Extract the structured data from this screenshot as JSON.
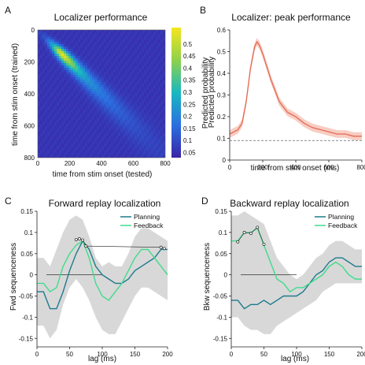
{
  "colors": {
    "heat_low": "#3a24a6",
    "heat_high": "#f5e61e",
    "probability_line": "#e26a55",
    "probability_band": "#f6c1b4",
    "planning": "#1e7a8c",
    "feedback": "#3fdc8c",
    "ci_band": "#d4d4d4",
    "chance_line": "#666666"
  },
  "chart_data": [
    {
      "panel": "A",
      "type": "heatmap",
      "title": "Localizer performance",
      "xlabel": "time from stim onset (tested)",
      "ylabel": "time from stim onset (trained)",
      "colorbar_label": "Predicted probability",
      "xlim": [
        0,
        800
      ],
      "ylim": [
        0,
        800
      ],
      "x_ticks": [
        "0",
        "200",
        "400",
        "600",
        "800"
      ],
      "y_ticks": [
        "0",
        "200",
        "400",
        "600",
        "800"
      ],
      "colorbar_range": [
        0.03,
        0.57
      ],
      "colorbar_ticks": [
        "0.5",
        "0.45",
        "0.4",
        "0.35",
        "0.3",
        "0.25",
        "0.2",
        "0.15",
        "0.1",
        "0.05"
      ],
      "colorbar_tick_values": [
        0.5,
        0.45,
        0.4,
        0.35,
        0.3,
        0.25,
        0.2,
        0.15,
        0.1,
        0.05
      ],
      "diagonal_profile": {
        "t": [
          0,
          50,
          100,
          130,
          160,
          200,
          250,
          300,
          400,
          500,
          600,
          700,
          800
        ],
        "p": [
          0.07,
          0.12,
          0.3,
          0.5,
          0.55,
          0.45,
          0.33,
          0.25,
          0.18,
          0.14,
          0.11,
          0.09,
          0.08
        ]
      },
      "background_level": 0.06
    },
    {
      "panel": "B",
      "type": "line",
      "title": "Localizer: peak performance",
      "xlabel": "time from stim onset (ms)",
      "ylabel": "Predicted probability",
      "xlim": [
        0,
        800
      ],
      "ylim": [
        0,
        0.6
      ],
      "x_ticks": [
        "0",
        "200",
        "400",
        "600",
        "800"
      ],
      "y_ticks": [
        "0",
        "0.1",
        "0.2",
        "0.3",
        "0.4",
        "0.5",
        "0.6"
      ],
      "chance_level": 0.09,
      "series": [
        {
          "x": [
            0,
            25,
            50,
            75,
            100,
            125,
            150,
            165,
            180,
            200,
            225,
            250,
            275,
            300,
            350,
            400,
            450,
            500,
            550,
            600,
            650,
            700,
            750,
            800
          ],
          "values": [
            0.12,
            0.13,
            0.14,
            0.17,
            0.27,
            0.42,
            0.52,
            0.545,
            0.53,
            0.49,
            0.43,
            0.37,
            0.32,
            0.27,
            0.22,
            0.2,
            0.17,
            0.15,
            0.14,
            0.13,
            0.12,
            0.12,
            0.11,
            0.11
          ],
          "ci": 0.018
        }
      ]
    },
    {
      "panel": "C",
      "type": "line",
      "title": "Forward replay localization",
      "xlabel": "lag (ms)",
      "ylabel": "Fwd sequenceness",
      "xlim": [
        0,
        200
      ],
      "ylim": [
        -0.17,
        0.15
      ],
      "x_ticks": [
        "0",
        "50",
        "100",
        "150",
        "200"
      ],
      "y_ticks": [
        "-0.15",
        "-0.1",
        "-0.05",
        "0",
        "0.05",
        "0.1",
        "0.15"
      ],
      "y_tick_values": [
        -0.15,
        -0.1,
        -0.05,
        0,
        0.05,
        0.1,
        0.15
      ],
      "x": [
        10,
        20,
        30,
        40,
        50,
        60,
        70,
        80,
        90,
        100,
        110,
        120,
        130,
        140,
        150,
        160,
        170,
        180,
        190,
        200
      ],
      "band": {
        "upper": [
          0.04,
          0.02,
          0.06,
          0.1,
          0.13,
          0.14,
          0.13,
          0.09,
          0.04,
          0.02,
          0.03,
          0.02,
          0.02,
          0.05,
          0.09,
          0.11,
          0.11,
          0.1,
          0.09,
          0.08
        ],
        "lower": [
          -0.12,
          -0.15,
          -0.13,
          -0.07,
          -0.03,
          -0.01,
          -0.03,
          -0.06,
          -0.1,
          -0.13,
          -0.14,
          -0.14,
          -0.11,
          -0.08,
          -0.05,
          -0.03,
          -0.03,
          -0.04,
          -0.05,
          -0.06
        ]
      },
      "significant_markers": {
        "x": [
          60,
          65,
          70,
          75,
          190,
          195
        ],
        "y": [
          0.083,
          0.085,
          0.082,
          0.068,
          0.065,
          0.062
        ]
      },
      "legend": "top-right",
      "series": [
        {
          "name": "Planning",
          "values": [
            -0.04,
            -0.08,
            -0.08,
            -0.04,
            0.01,
            0.05,
            0.08,
            0.06,
            0.02,
            0.0,
            -0.01,
            -0.02,
            -0.02,
            -0.01,
            0.01,
            0.02,
            0.03,
            0.04,
            0.06,
            0.06
          ]
        },
        {
          "name": "Feedback",
          "values": [
            -0.02,
            -0.04,
            -0.03,
            0.02,
            0.05,
            0.07,
            0.08,
            0.04,
            -0.02,
            -0.05,
            -0.06,
            -0.04,
            -0.02,
            0.01,
            0.04,
            0.06,
            0.06,
            0.04,
            0.02,
            0.0
          ]
        }
      ]
    },
    {
      "panel": "D",
      "type": "line",
      "title": "Backward replay localization",
      "xlabel": "lag (ms)",
      "ylabel": "Bkw sequenceness",
      "xlim": [
        0,
        200
      ],
      "ylim": [
        -0.17,
        0.15
      ],
      "x_ticks": [
        "0",
        "50",
        "100",
        "150",
        "200"
      ],
      "y_ticks": [
        "-0.15",
        "-0.1",
        "-0.05",
        "0",
        "0.05",
        "0.1",
        "0.15"
      ],
      "y_tick_values": [
        -0.15,
        -0.1,
        -0.05,
        0,
        0.05,
        0.1,
        0.15
      ],
      "x": [
        10,
        20,
        30,
        40,
        50,
        60,
        70,
        80,
        90,
        100,
        110,
        120,
        130,
        140,
        150,
        160,
        170,
        180,
        190,
        200
      ],
      "band": {
        "upper": [
          0.14,
          0.15,
          0.14,
          0.13,
          0.12,
          0.08,
          0.04,
          0.02,
          0.0,
          -0.01,
          0.0,
          0.02,
          0.04,
          0.05,
          0.07,
          0.08,
          0.08,
          0.07,
          0.06,
          0.06
        ],
        "lower": [
          -0.1,
          -0.12,
          -0.13,
          -0.13,
          -0.14,
          -0.14,
          -0.12,
          -0.11,
          -0.1,
          -0.09,
          -0.08,
          -0.07,
          -0.06,
          -0.04,
          -0.03,
          -0.02,
          -0.02,
          -0.02,
          -0.02,
          -0.02
        ]
      },
      "significant_markers": {
        "x": [
          10,
          20,
          30,
          40,
          50
        ],
        "y": [
          0.078,
          0.1,
          0.098,
          0.112,
          0.072
        ]
      },
      "legend": "top-right",
      "series": [
        {
          "name": "Planning",
          "values": [
            -0.06,
            -0.08,
            -0.07,
            -0.07,
            -0.06,
            -0.07,
            -0.06,
            -0.05,
            -0.05,
            -0.05,
            -0.04,
            -0.02,
            0.0,
            0.01,
            0.03,
            0.04,
            0.04,
            0.03,
            0.02,
            0.02
          ]
        },
        {
          "name": "Feedback",
          "values": [
            0.08,
            0.1,
            0.1,
            0.11,
            0.07,
            0.03,
            -0.01,
            -0.02,
            -0.04,
            -0.03,
            -0.03,
            -0.02,
            -0.01,
            0.0,
            0.02,
            0.03,
            0.02,
            0.0,
            -0.01,
            -0.01
          ]
        }
      ]
    }
  ]
}
